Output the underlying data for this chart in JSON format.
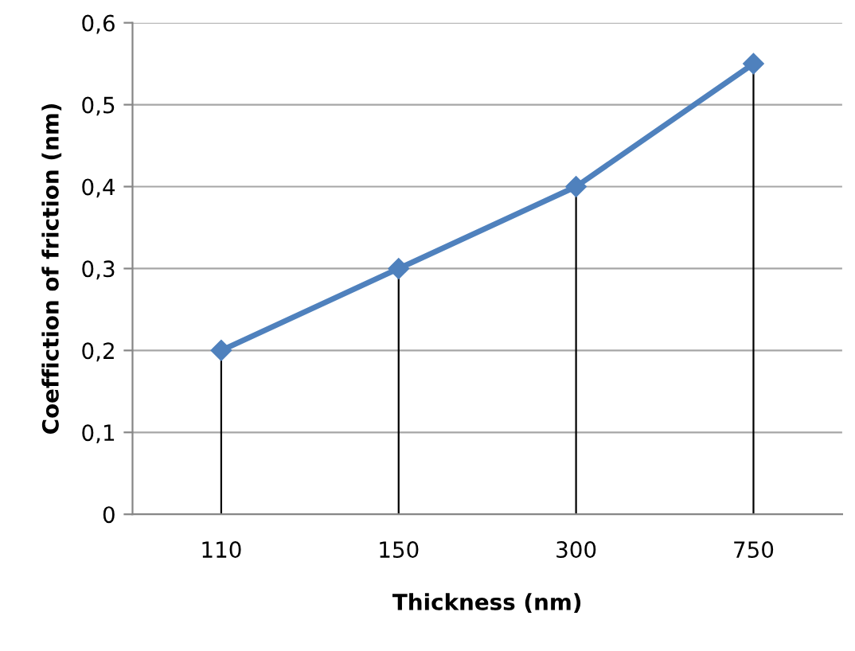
{
  "chart_data": {
    "type": "line",
    "xlabel": "Thickness (nm)",
    "ylabel": "Coeffiction of friction (nm)",
    "categories": [
      "110",
      "150",
      "300",
      "750"
    ],
    "series": [
      {
        "color": "#4f81bd",
        "values": [
          0.2,
          0.3,
          0.4,
          0.55
        ],
        "errors": [
          [
            0,
            0.2
          ],
          [
            0,
            0.3
          ],
          [
            0,
            0.4
          ],
          [
            0,
            0.55
          ]
        ]
      }
    ],
    "ylim": [
      0,
      0.6
    ],
    "yticks": [
      0,
      {
        "value": 0.1,
        "label": "0,1"
      },
      {
        "value": 0.2,
        "label": "0,2"
      },
      {
        "value": 0.3,
        "label": "0,3"
      },
      {
        "value": 0.4,
        "label": "0,4"
      },
      {
        "value": 0.5,
        "label": "0,5"
      },
      {
        "value": 0.6,
        "label": "0,6"
      }
    ],
    "grid": "y",
    "marker": "diamond",
    "line_style": "solid"
  }
}
